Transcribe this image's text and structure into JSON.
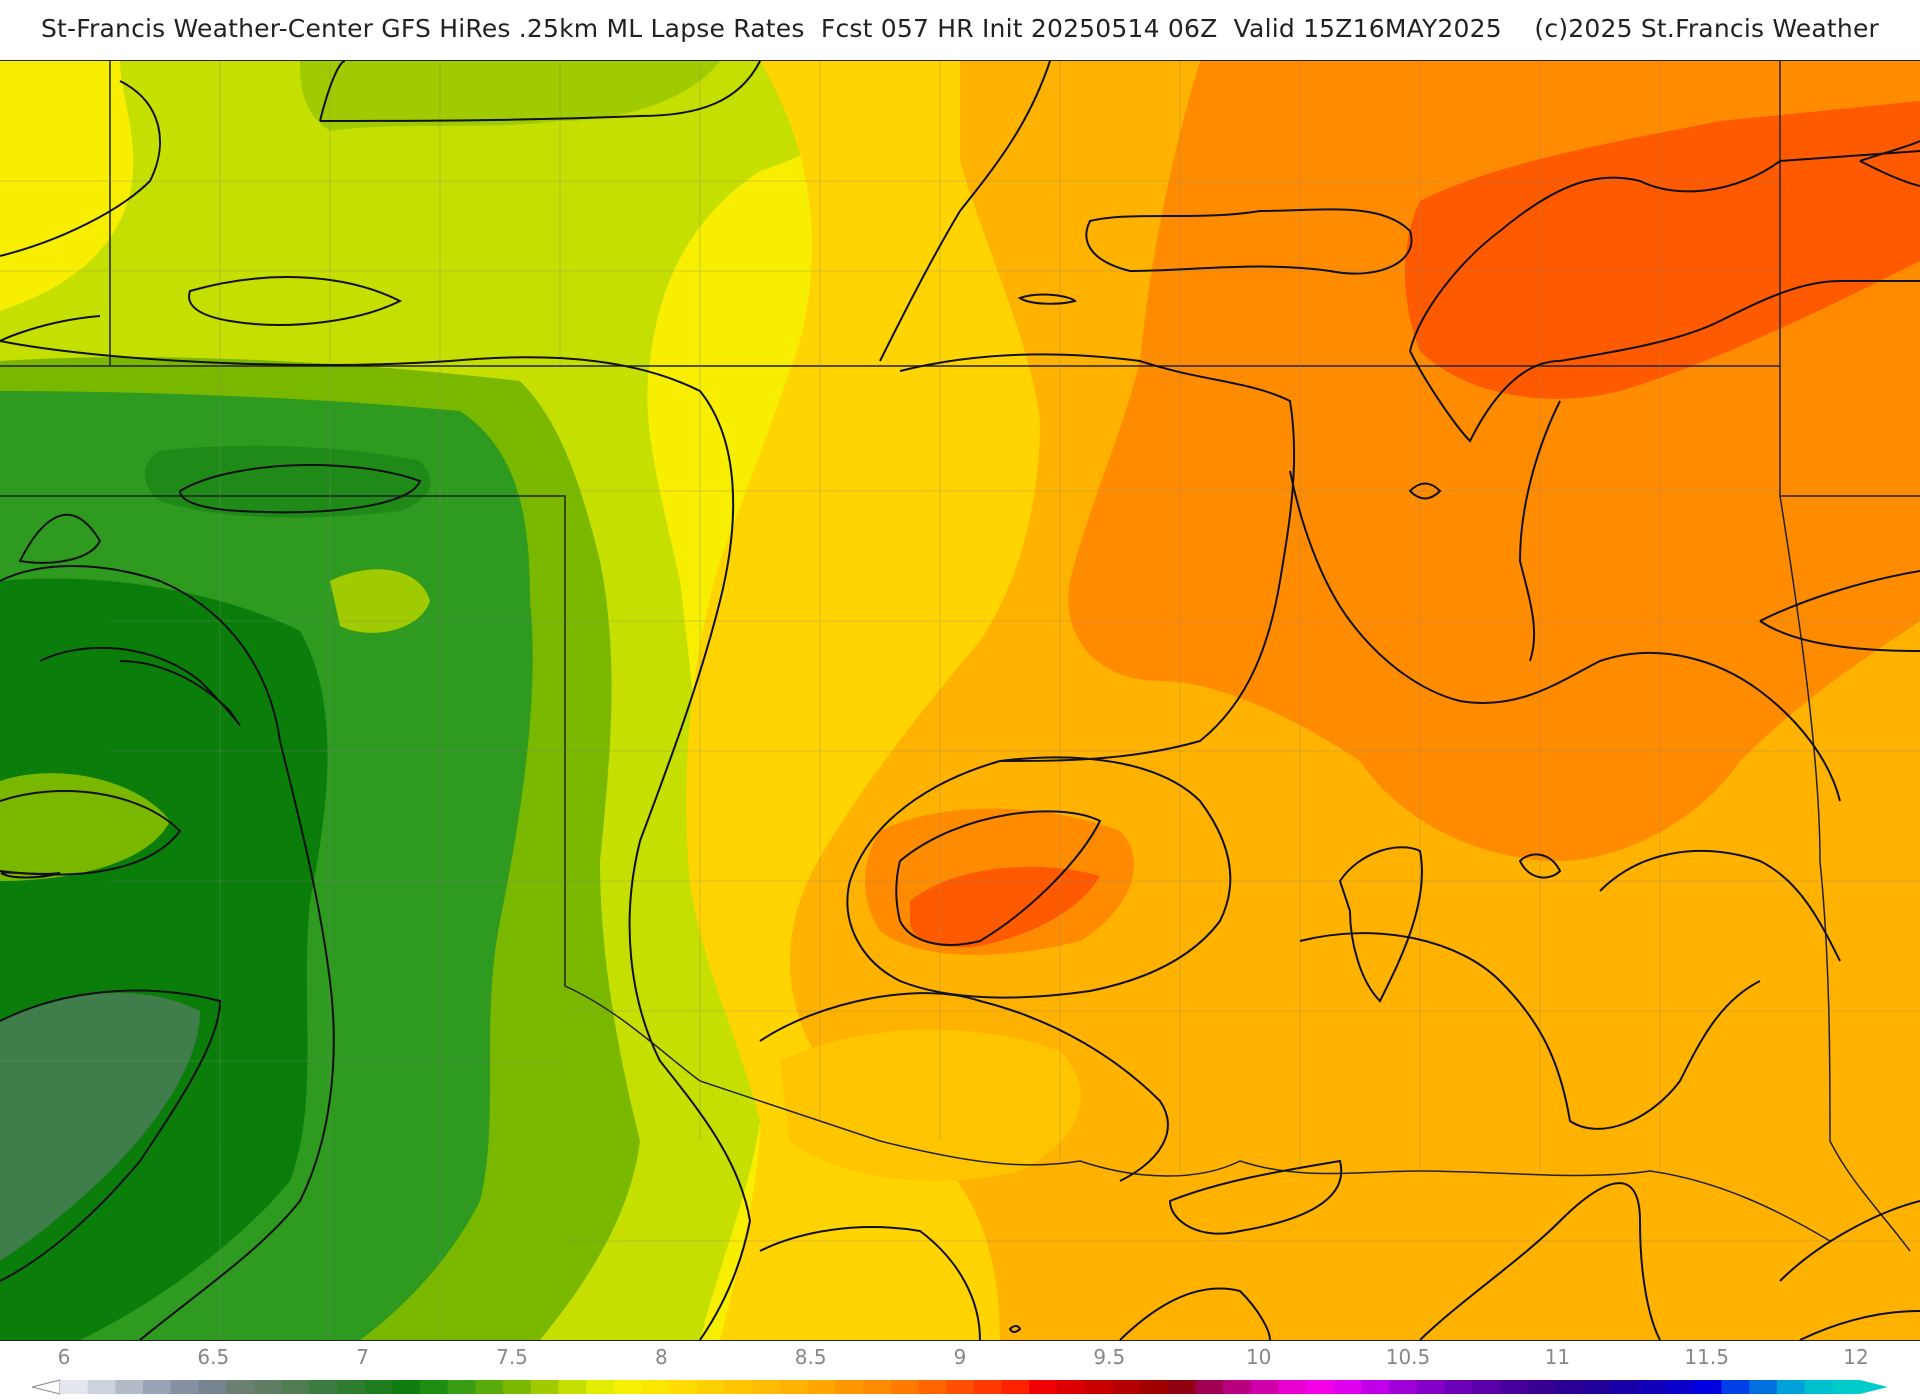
{
  "header": {
    "title": "St-Francis Weather-Center GFS HiRes .25km ML Lapse Rates  Fcst 057 HR Init 20250514 06Z  Valid 15Z16MAY2025    (c)2025 St.Francis Weather"
  },
  "map": {
    "field": "ML Lapse Rates",
    "colors": {
      "deep_green": "#0a7d0a",
      "mid_green": "#2e9a20",
      "light_green": "#7ab800",
      "yellow_green": "#c5e000",
      "yellow": "#f5f000",
      "gold": "#ffd400",
      "amber": "#ffb200",
      "orange": "#ff8c00",
      "red_orange": "#ff5a00",
      "contour": "#111111",
      "boundary": "#555555"
    }
  },
  "legend": {
    "min": 6,
    "max": 12,
    "step": 0.125,
    "tick_labels": [
      "6",
      "6.5",
      "7",
      "7.5",
      "8",
      "8.5",
      "9",
      "9.5",
      "10",
      "10.5",
      "11",
      "11.5",
      "12"
    ],
    "colors": [
      "#e4e8ee",
      "#cdd3dc",
      "#b3bbc8",
      "#9aa3b4",
      "#8590a3",
      "#76858f",
      "#6c8072",
      "#5f7e63",
      "#4f7d52",
      "#3d7c40",
      "#2e7d2f",
      "#1f7d20",
      "#0f7d0f",
      "#1e8e12",
      "#3a9e14",
      "#5aac0c",
      "#7ab800",
      "#a0cb00",
      "#c5e000",
      "#e2ec00",
      "#f5f000",
      "#fbe600",
      "#ffdb00",
      "#ffd000",
      "#ffc600",
      "#ffbc00",
      "#ffb200",
      "#ffa600",
      "#ff9800",
      "#ff8c00",
      "#ff7a00",
      "#ff6600",
      "#ff4f00",
      "#ff3a00",
      "#ff2200",
      "#f00000",
      "#dd0000",
      "#c80000",
      "#b40000",
      "#a00000",
      "#8e0010",
      "#a00050",
      "#b8007f",
      "#d000a8",
      "#e800d0",
      "#f400e8",
      "#e000f0",
      "#c000e8",
      "#a000d8",
      "#8400c8",
      "#6c00b8",
      "#5a00a8",
      "#48009c",
      "#380090",
      "#2a0094",
      "#200098",
      "#1800a8",
      "#1000b8",
      "#0a00cc",
      "#0000e0",
      "#0040e8",
      "#0070e0",
      "#00a0d8",
      "#00c0d0",
      "#00cccc"
    ]
  }
}
